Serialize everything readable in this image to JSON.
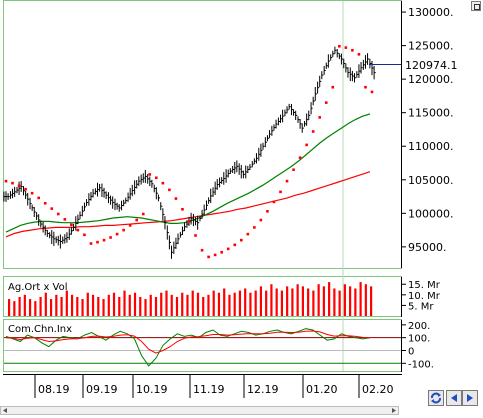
{
  "chart_data": [
    {
      "type": "ohlc",
      "panel": "price",
      "x_ticks": [
        "08.19",
        "09.19",
        "10.19",
        "11.19",
        "12.19",
        "01.20",
        "02.20"
      ],
      "y_ticks": [
        "130000.",
        "125000.",
        "120000.",
        "115000.",
        "110000.",
        "105000.",
        "100000.",
        "95000."
      ],
      "ylim": [
        92000,
        131500
      ],
      "last_value_label": "120974.1",
      "series": [
        {
          "name": "close",
          "color": "#000000",
          "values": [
            102500,
            103200,
            104000,
            102100,
            100200,
            98400,
            97000,
            96200,
            95800,
            96400,
            97900,
            99700,
            101600,
            103000,
            103800,
            102700,
            101600,
            100800,
            101900,
            103400,
            104800,
            105500,
            104400,
            102300,
            98600,
            94200,
            96200,
            98000,
            99200,
            98600,
            100500,
            102600,
            104300,
            105200,
            106300,
            107000,
            105800,
            106900,
            108200,
            110000,
            111800,
            113300,
            114500,
            115900,
            114600,
            112700,
            114600,
            117800,
            120600,
            122700,
            124300,
            123000,
            121000,
            120200,
            121700,
            123000,
            120974
          ]
        },
        {
          "name": "MA short",
          "color": "#008000",
          "values": [
            97200,
            97700,
            98200,
            98500,
            98700,
            98800,
            98800,
            98700,
            98600,
            98600,
            98600,
            98700,
            98800,
            98900,
            99100,
            99300,
            99400,
            99500,
            99400,
            99300,
            99100,
            98900,
            98700,
            98500,
            98500,
            98600,
            98900,
            99300,
            99800,
            100300,
            100900,
            101500,
            102000,
            102500,
            103000,
            103600,
            104200,
            104900,
            105600,
            106300,
            107000,
            107800,
            108700,
            109600,
            110500,
            111300,
            112000,
            112700,
            113400,
            114000,
            114500,
            114800
          ]
        },
        {
          "name": "MA long",
          "color": "#ff0000",
          "values": [
            96500,
            97000,
            97300,
            97500,
            97700,
            97800,
            97900,
            97900,
            97900,
            98000,
            98000,
            98100,
            98200,
            98200,
            98300,
            98400,
            98500,
            98600,
            98700,
            98800,
            98900,
            99100,
            99300,
            99500,
            99700,
            99900,
            100100,
            100300,
            100600,
            100800,
            101100,
            101400,
            101700,
            102000,
            102300,
            102700,
            103000,
            103400,
            103800,
            104200,
            104600,
            105000,
            105400,
            105800,
            106200
          ]
        },
        {
          "name": "parabolic SAR",
          "color": "#ff0000",
          "values": [
            104800,
            104500,
            104100,
            103600,
            103000,
            102300,
            101500,
            100700,
            99900,
            99100,
            98300,
            97500,
            96800,
            95500,
            95700,
            96000,
            96400,
            96900,
            97500,
            98200,
            99000,
            99900,
            105800,
            105300,
            104500,
            103500,
            102200,
            100600,
            98800,
            96700,
            94500,
            93500,
            93800,
            94200,
            94700,
            95300,
            96000,
            96900,
            97900,
            99000,
            100300,
            101700,
            103200,
            104800,
            106500,
            108300,
            110200,
            112200,
            114300,
            116500,
            118800,
            124900,
            124700,
            124300,
            123700,
            118800,
            118100
          ]
        }
      ]
    },
    {
      "type": "bar",
      "panel": "volume",
      "title": "Ag.Ort x Vol",
      "y_ticks": [
        "15. Mr",
        "10. Mr",
        "5. Mr"
      ],
      "values": [
        8,
        7,
        9,
        10,
        8,
        7,
        9,
        11,
        8,
        10,
        9,
        12,
        10,
        9,
        8,
        11,
        10,
        9,
        8,
        10,
        11,
        9,
        12,
        10,
        11,
        9,
        8,
        10,
        9,
        11,
        12,
        10,
        9,
        11,
        10,
        12,
        11,
        9,
        10,
        12,
        11,
        13,
        10,
        11,
        12,
        13,
        11,
        12,
        14,
        12,
        15,
        13,
        12,
        14,
        13,
        15,
        14,
        13,
        12,
        15,
        14,
        16,
        13,
        12,
        15,
        14,
        13,
        16,
        15,
        14
      ]
    },
    {
      "type": "line",
      "panel": "indicator",
      "title": "Com.Chn.Inx",
      "y_ticks": [
        "200.",
        "100.",
        "0",
        "-100."
      ],
      "ylim": [
        -160,
        230
      ],
      "series": [
        {
          "name": "CCI",
          "color": "#008000",
          "values": [
            110,
            90,
            70,
            120,
            100,
            60,
            30,
            80,
            110,
            100,
            90,
            120,
            140,
            110,
            80,
            120,
            150,
            130,
            90,
            -40,
            -120,
            -60,
            40,
            90,
            130,
            110,
            120,
            100,
            140,
            160,
            120,
            110,
            130,
            150,
            140,
            120,
            130,
            150,
            160,
            140,
            130,
            150,
            170,
            160,
            120,
            80,
            90,
            130,
            110,
            100,
            90,
            100
          ]
        },
        {
          "name": "CCI signal",
          "color": "#ff0000",
          "values": [
            100,
            95,
            85,
            95,
            100,
            85,
            70,
            75,
            85,
            90,
            92,
            100,
            110,
            112,
            105,
            110,
            120,
            122,
            112,
            70,
            10,
            -20,
            0,
            30,
            70,
            95,
            105,
            108,
            115,
            125,
            125,
            120,
            122,
            128,
            132,
            130,
            130,
            135,
            142,
            142,
            140,
            142,
            150,
            152,
            145,
            125,
            112,
            115,
            115,
            110,
            102,
            100
          ]
        }
      ]
    }
  ],
  "toolbar": {
    "refresh_icon": "refresh-icon",
    "prev_icon": "arrow-left-icon",
    "next_icon": "arrow-right-icon",
    "scroll_left_icon": "scroll-left-icon",
    "scroll_right_icon": "scroll-right-icon",
    "maximize_icon": "maximize-icon"
  },
  "colors": {
    "frame": "#7fc77f",
    "price_bars": "#000000",
    "ma_short": "#008000",
    "ma_long": "#ff0000",
    "sar": "#ff0000",
    "volume": "#ff0000",
    "reference_line": "#1a2a8f"
  }
}
